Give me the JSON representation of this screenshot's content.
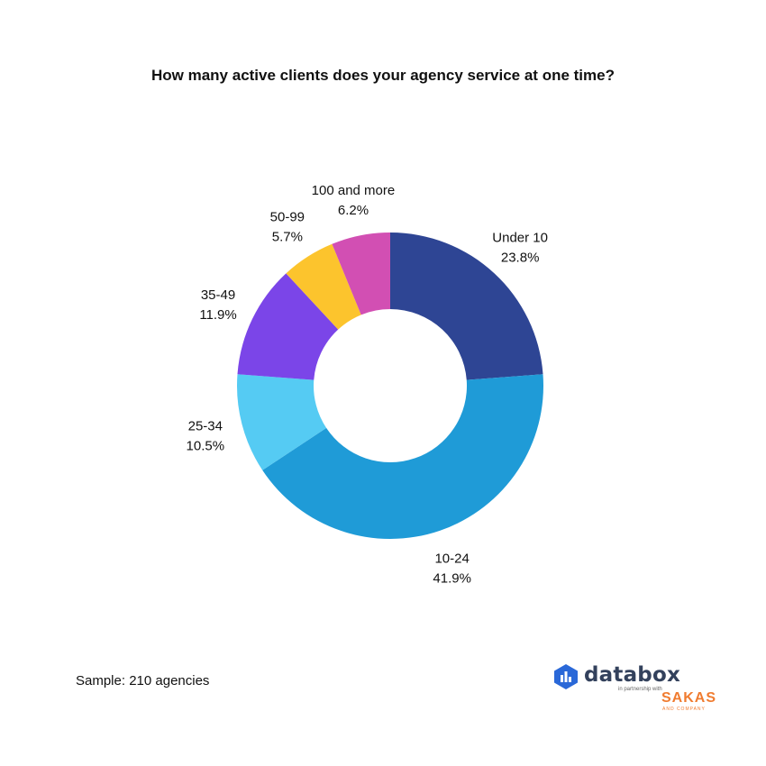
{
  "chart_data": {
    "type": "pie",
    "title": "How many active clients does your agency service at one time?",
    "categories": [
      "Under 10",
      "10-24",
      "25-34",
      "35-49",
      "50-99",
      "100 and more"
    ],
    "values": [
      23.8,
      41.9,
      10.5,
      11.9,
      5.7,
      6.2
    ],
    "value_labels": [
      "23.8%",
      "41.9%",
      "10.5%",
      "11.9%",
      "5.7%",
      "6.2%"
    ],
    "colors": [
      "#2e4594",
      "#1f9bd7",
      "#55cbf3",
      "#7b45e8",
      "#fcc42d",
      "#d24fb3"
    ],
    "donut": true,
    "legend": "none",
    "labels_placement": "outside"
  },
  "footer": {
    "sample_text": "Sample: 210 agencies"
  },
  "branding": {
    "logo_name": "databox",
    "partner_text": "in partnership with",
    "partner_name": "SAKAS",
    "partner_sub": "AND COMPANY"
  }
}
